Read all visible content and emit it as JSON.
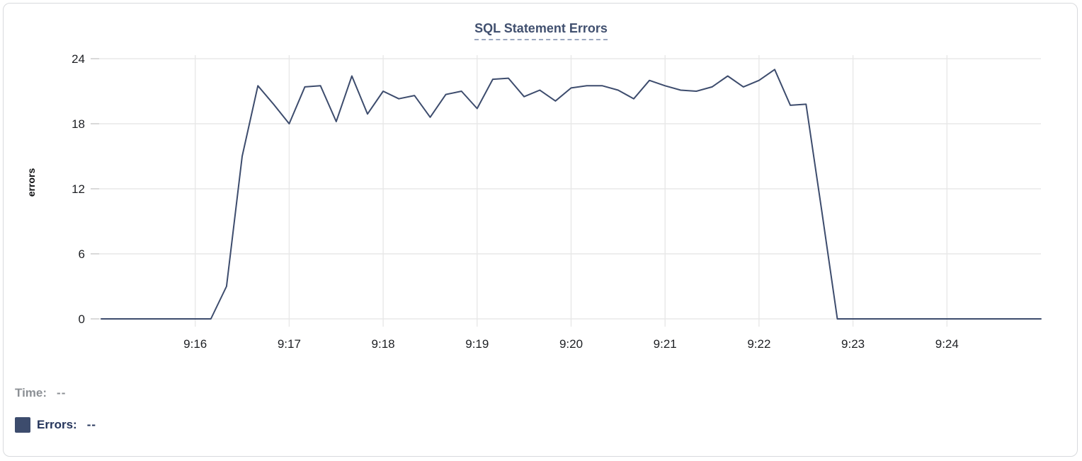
{
  "chart_data": {
    "type": "line",
    "title": "SQL Statement Errors",
    "xlabel": "",
    "ylabel": "errors",
    "ylim": [
      0,
      24
    ],
    "y_ticks": [
      0,
      6,
      12,
      18,
      24
    ],
    "x_ticks": [
      "9:16",
      "9:17",
      "9:18",
      "9:19",
      "9:20",
      "9:21",
      "9:22",
      "9:23",
      "9:24"
    ],
    "x_range": [
      "9:15:00",
      "9:25:00"
    ],
    "sample_interval_seconds": 10,
    "grid": true,
    "legend_position": "bottom-left",
    "series": [
      {
        "name": "Errors",
        "color": "#3d4c6d",
        "x": [
          "9:15:00",
          "9:15:10",
          "9:15:20",
          "9:15:30",
          "9:15:40",
          "9:15:50",
          "9:16:00",
          "9:16:10",
          "9:16:20",
          "9:16:30",
          "9:16:40",
          "9:16:50",
          "9:17:00",
          "9:17:10",
          "9:17:20",
          "9:17:30",
          "9:17:40",
          "9:17:50",
          "9:18:00",
          "9:18:10",
          "9:18:20",
          "9:18:30",
          "9:18:40",
          "9:18:50",
          "9:19:00",
          "9:19:10",
          "9:19:20",
          "9:19:30",
          "9:19:40",
          "9:19:50",
          "9:20:00",
          "9:20:10",
          "9:20:20",
          "9:20:30",
          "9:20:40",
          "9:20:50",
          "9:21:00",
          "9:21:10",
          "9:21:20",
          "9:21:30",
          "9:21:40",
          "9:21:50",
          "9:22:00",
          "9:22:10",
          "9:22:20",
          "9:22:30",
          "9:22:40",
          "9:22:50",
          "9:23:00",
          "9:23:10",
          "9:23:20",
          "9:23:30",
          "9:23:40",
          "9:23:50",
          "9:24:00",
          "9:24:10",
          "9:24:20",
          "9:24:30",
          "9:24:40",
          "9:24:50",
          "9:25:00"
        ],
        "values": [
          0,
          0,
          0,
          0,
          0,
          0,
          0,
          0,
          3,
          15,
          21.5,
          19.8,
          18,
          21.4,
          21.5,
          18.2,
          22.4,
          18.9,
          21,
          20.3,
          20.6,
          18.6,
          20.7,
          21,
          19.4,
          22.1,
          22.2,
          20.5,
          21.1,
          20.1,
          21.3,
          21.5,
          21.5,
          21.1,
          20.3,
          22,
          21.5,
          21.1,
          21,
          21.4,
          22.4,
          21.4,
          22,
          23,
          19.7,
          19.8,
          10,
          0,
          0,
          0,
          0,
          0,
          0,
          0,
          0,
          0,
          0,
          0,
          0,
          0,
          0
        ]
      }
    ]
  },
  "legend": {
    "time_label": "Time:",
    "time_value": "--",
    "errors_label": "Errors:",
    "errors_value": "--",
    "swatch_color": "#3d4c6d"
  },
  "colors": {
    "line": "#3d4c6d",
    "title": "#41506f",
    "title_underline": "#9ca8c0",
    "grid": "#e8e8e8",
    "tick_mark": "#d9d9d9",
    "tick_text": "#1d1f23",
    "card_border": "#d8dadd",
    "time_gray": "#8c9095",
    "errors_navy": "#25355b"
  }
}
